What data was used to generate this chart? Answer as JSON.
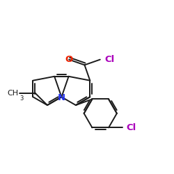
{
  "background_color": "#ffffff",
  "figsize": [
    2.5,
    2.5
  ],
  "dpi": 100,
  "bond_color": "#1a1a1a",
  "bond_width": 1.4,
  "atom_colors": {
    "O": "#ee2200",
    "Cl_acyl": "#aa00bb",
    "N": "#2233ee",
    "Cl_para": "#aa00bb"
  }
}
